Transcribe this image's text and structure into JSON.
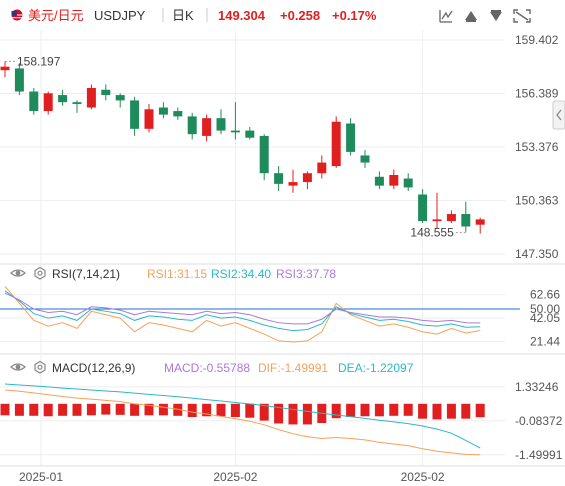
{
  "header": {
    "pair_name": "美元/日元",
    "symbol": "USDJPY",
    "period": "日K",
    "price": "149.304",
    "change": "+0.258",
    "change_pct": "+0.17%"
  },
  "rsi": {
    "title": "RSI(7,14,21)",
    "rsi1": "RSI1:31.15",
    "rsi2": "RSI2:34.40",
    "rsi3": "RSI3:37.78"
  },
  "macd": {
    "title": "MACD(12,26,9)",
    "macd": "MACD:-0.55788",
    "dif": "DIF:-1.49991",
    "dea": "DEA:-1.22097"
  },
  "colors": {
    "up": "#e02020",
    "down": "#1f8a5b",
    "rsi1": "#f4a259",
    "rsi2": "#2bb8c8",
    "rsi3": "#a77bd8",
    "dif": "#f4a259",
    "dea": "#2bb8c8",
    "price_text": "#e02020",
    "axis_text": "#555555",
    "rsi_mid": "#1e6fd9"
  },
  "icons": [
    "indicator-icon",
    "draw-up-icon",
    "draw-down-icon",
    "fullscreen-icon"
  ],
  "chart_data": [
    {
      "type": "candlestick",
      "yticks": [
        "159.402",
        "156.389",
        "153.376",
        "150.363",
        "147.350"
      ],
      "ylim": [
        147.35,
        159.402
      ],
      "annotations": [
        {
          "text": "158.197",
          "index": 0,
          "value": 158.197
        },
        {
          "text": "148.555",
          "index": 32,
          "value": 148.555
        }
      ],
      "xticks": [
        {
          "label": "2025-01",
          "index": 2.5
        },
        {
          "label": "2025-02",
          "index": 16
        },
        {
          "label": "2025-02",
          "index": 29
        }
      ],
      "ohlc": [
        [
          157.7,
          158.2,
          157.3,
          157.9
        ],
        [
          157.8,
          158.1,
          156.3,
          156.5
        ],
        [
          156.5,
          156.7,
          155.2,
          155.4
        ],
        [
          155.4,
          156.5,
          155.2,
          156.4
        ],
        [
          156.3,
          156.6,
          155.7,
          155.9
        ],
        [
          155.9,
          156.0,
          155.3,
          155.8
        ],
        [
          155.6,
          156.9,
          155.5,
          156.7
        ],
        [
          156.6,
          156.9,
          156.0,
          156.3
        ],
        [
          156.3,
          156.4,
          155.6,
          156.0
        ],
        [
          156.0,
          156.2,
          154.0,
          154.4
        ],
        [
          154.4,
          155.8,
          154.2,
          155.5
        ],
        [
          155.6,
          155.9,
          155.0,
          155.2
        ],
        [
          155.4,
          155.6,
          154.9,
          155.1
        ],
        [
          155.1,
          155.3,
          153.8,
          154.1
        ],
        [
          154.0,
          155.2,
          153.7,
          155.0
        ],
        [
          155.0,
          155.5,
          154.1,
          154.3
        ],
        [
          154.3,
          155.9,
          153.8,
          154.2
        ],
        [
          154.3,
          154.5,
          153.8,
          153.9
        ],
        [
          154.0,
          154.1,
          151.5,
          151.9
        ],
        [
          151.9,
          152.3,
          150.9,
          151.3
        ],
        [
          151.2,
          152.1,
          150.8,
          151.4
        ],
        [
          151.4,
          152.0,
          151.0,
          151.9
        ],
        [
          151.9,
          152.9,
          151.6,
          152.5
        ],
        [
          152.3,
          155.1,
          152.2,
          154.8
        ],
        [
          154.7,
          155.0,
          152.9,
          153.1
        ],
        [
          152.9,
          153.2,
          152.2,
          152.5
        ],
        [
          151.7,
          152.0,
          151.0,
          151.2
        ],
        [
          151.2,
          152.1,
          151.0,
          151.8
        ],
        [
          151.6,
          151.9,
          150.9,
          151.1
        ],
        [
          150.7,
          151.0,
          149.1,
          149.2
        ],
        [
          149.2,
          150.8,
          148.8,
          149.3
        ],
        [
          149.2,
          149.8,
          149.1,
          149.6
        ],
        [
          149.6,
          150.3,
          148.6,
          148.9
        ],
        [
          149.0,
          149.4,
          148.5,
          149.3
        ]
      ]
    },
    {
      "type": "line",
      "title": "RSI(7,14,21)",
      "yticks": [
        "62.66",
        "50.00",
        "42.05",
        "21.44"
      ],
      "ylim": [
        14,
        72
      ],
      "reference": 50,
      "series": [
        {
          "name": "RSI1",
          "values": [
            70,
            55,
            40,
            35,
            38,
            33,
            48,
            45,
            42,
            30,
            38,
            36,
            33,
            30,
            40,
            35,
            38,
            33,
            28,
            22,
            21,
            22,
            30,
            55,
            45,
            40,
            35,
            37,
            34,
            30,
            28,
            33,
            29,
            31.15
          ]
        },
        {
          "name": "RSI2",
          "values": [
            66,
            57,
            46,
            42,
            44,
            40,
            50,
            48,
            46,
            40,
            44,
            43,
            41,
            40,
            45,
            42,
            43,
            40,
            36,
            33,
            31,
            32,
            37,
            52,
            46,
            43,
            40,
            41,
            39,
            36,
            35,
            37,
            34,
            34.4
          ]
        },
        {
          "name": "RSI3",
          "values": [
            64,
            58,
            50,
            47,
            48,
            45,
            52,
            51,
            49,
            45,
            48,
            47,
            46,
            45,
            48,
            46,
            47,
            45,
            41,
            38,
            37,
            37,
            41,
            50,
            47,
            45,
            43,
            43,
            42,
            40,
            39,
            40,
            38,
            37.78
          ]
        }
      ]
    },
    {
      "type": "bar",
      "title": "MACD(12,26,9)",
      "yticks": [
        "1.33246",
        "-0.08372",
        "-1.49991"
      ],
      "ylim": [
        -1.8,
        1.7
      ],
      "categories_count": 34,
      "histogram": [
        -0.48,
        -0.5,
        -0.5,
        -0.52,
        -0.5,
        -0.5,
        -0.48,
        -0.45,
        -0.46,
        -0.5,
        -0.48,
        -0.48,
        -0.5,
        -0.55,
        -0.52,
        -0.52,
        -0.55,
        -0.58,
        -0.7,
        -0.82,
        -0.86,
        -0.86,
        -0.8,
        -0.6,
        -0.55,
        -0.52,
        -0.52,
        -0.5,
        -0.5,
        -0.62,
        -0.65,
        -0.62,
        -0.62,
        -0.56
      ],
      "series": [
        {
          "name": "DIF",
          "values": [
            1.2,
            1.15,
            1.08,
            1.0,
            0.93,
            0.86,
            0.82,
            0.77,
            0.72,
            0.62,
            0.56,
            0.48,
            0.4,
            0.28,
            0.2,
            0.1,
            0.0,
            -0.1,
            -0.25,
            -0.45,
            -0.62,
            -0.75,
            -0.82,
            -0.78,
            -0.82,
            -0.88,
            -0.98,
            -1.05,
            -1.12,
            -1.25,
            -1.35,
            -1.42,
            -1.48,
            -1.49991
          ]
        },
        {
          "name": "DEA",
          "values": [
            1.45,
            1.41,
            1.37,
            1.33,
            1.28,
            1.24,
            1.2,
            1.16,
            1.12,
            1.07,
            1.02,
            0.97,
            0.92,
            0.86,
            0.8,
            0.74,
            0.68,
            0.62,
            0.55,
            0.47,
            0.39,
            0.31,
            0.23,
            0.16,
            0.09,
            0.02,
            -0.06,
            -0.13,
            -0.2,
            -0.3,
            -0.43,
            -0.6,
            -0.9,
            -1.22097
          ]
        }
      ]
    }
  ]
}
